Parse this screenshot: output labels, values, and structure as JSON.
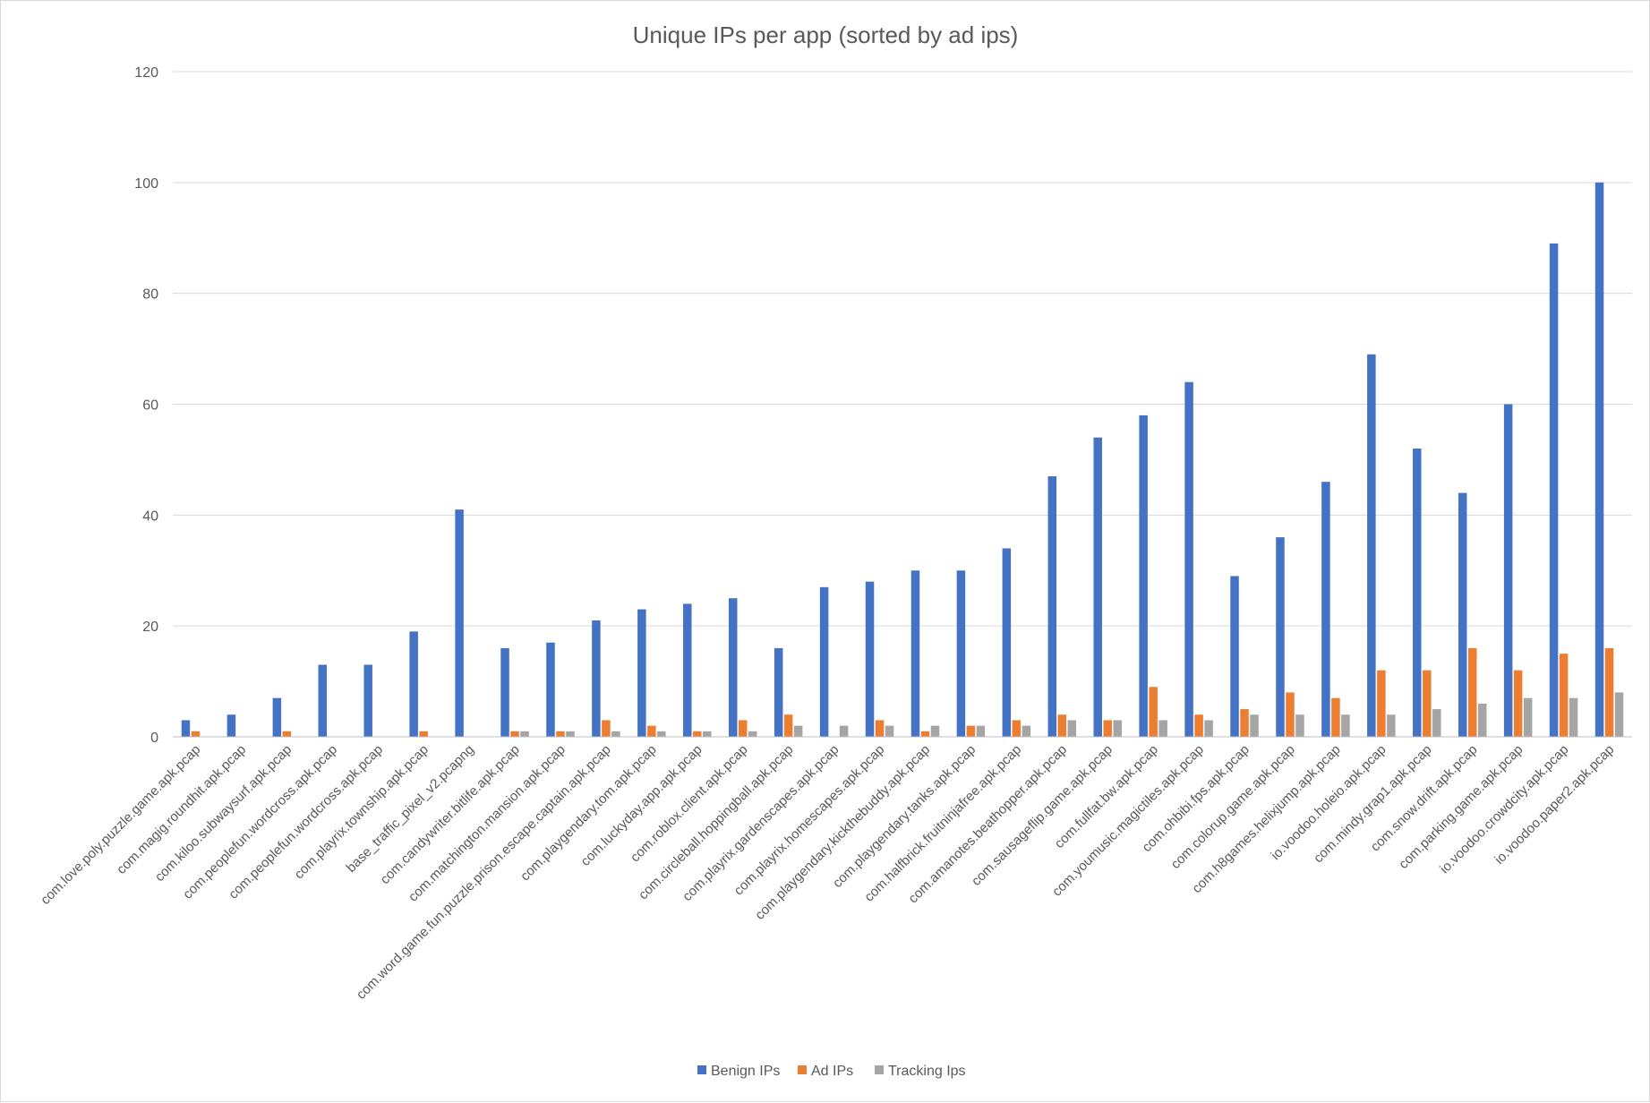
{
  "chart_data": {
    "type": "bar",
    "title": "Unique IPs per app (sorted by ad ips)",
    "xlabel": "",
    "ylabel": "",
    "ylim": [
      0,
      120
    ],
    "yticks": [
      0,
      20,
      40,
      60,
      80,
      100,
      120
    ],
    "grid": true,
    "legend_position": "bottom",
    "categories": [
      "com.love.poly.puzzle.game.apk.pcap",
      "com.magig.roundhit.apk.pcap",
      "com.kiloo.subwaysurf.apk.pcap",
      "com.peoplefun.wordcross.apk.pcap",
      "com.peoplefun.wordcross.apk.pcap",
      "com.playrix.township.apk.pcap",
      "base_traffic_pixel_v2.pcapng",
      "com.candywriter.bitlife.apk.pcap",
      "com.matchington.mansion.apk.pcap",
      "com.word.game.fun.puzzle.prison.escape.captain.apk.pcap",
      "com.playgendary.tom.apk.pcap",
      "com.luckyday.app.apk.pcap",
      "com.roblox.client.apk.pcap",
      "com.circleball.hoppingball.apk.pcap",
      "com.playrix.gardenscapes.apk.pcap",
      "com.playrix.homescapes.apk.pcap",
      "com.playgendary.kickthebuddy.apk.pcap",
      "com.playgendary.tanks.apk.pcap",
      "com.halfbrick.fruitninjafree.apk.pcap",
      "com.amanotes.beathopper.apk.pcap",
      "com.sausageflip.game.apk.pcap",
      "com.fullfat.bw.apk.pcap",
      "com.youmusic.magictiles.apk.pcap",
      "com.ohbibi.fps.apk.pcap",
      "com.colorup.game.apk.pcap",
      "com.h8games.helixjump.apk.pcap",
      "io.voodoo.holeio.apk.pcap",
      "com.mindy.grap1.apk.pcap",
      "com.snow.drift.apk.pcap",
      "com.parking.game.apk.pcap",
      "io.voodoo.crowdcity.apk.pcap",
      "io.voodoo.paper2.apk.pcap"
    ],
    "series": [
      {
        "name": "Benign IPs",
        "color": "#4472c4",
        "values": [
          3,
          4,
          7,
          13,
          13,
          19,
          41,
          16,
          17,
          21,
          23,
          24,
          25,
          16,
          27,
          28,
          30,
          30,
          34,
          47,
          54,
          58,
          64,
          29,
          36,
          46,
          69,
          52,
          44,
          60,
          89,
          100
        ]
      },
      {
        "name": "Ad IPs",
        "color": "#ed7d31",
        "values": [
          1,
          0,
          1,
          0,
          0,
          1,
          0,
          1,
          1,
          3,
          2,
          1,
          3,
          4,
          0,
          3,
          1,
          2,
          3,
          4,
          3,
          9,
          4,
          5,
          8,
          7,
          12,
          12,
          16,
          12,
          15,
          16
        ]
      },
      {
        "name": "Tracking Ips",
        "color": "#a5a5a5",
        "values": [
          0,
          0,
          0,
          0,
          0,
          0,
          0,
          1,
          1,
          1,
          1,
          1,
          1,
          2,
          2,
          2,
          2,
          2,
          2,
          3,
          3,
          3,
          3,
          4,
          4,
          4,
          4,
          5,
          6,
          7,
          7,
          8
        ]
      }
    ]
  },
  "colors": {
    "gridline": "#d9d9d9",
    "axis": "#bfbfbf",
    "text": "#595959"
  }
}
